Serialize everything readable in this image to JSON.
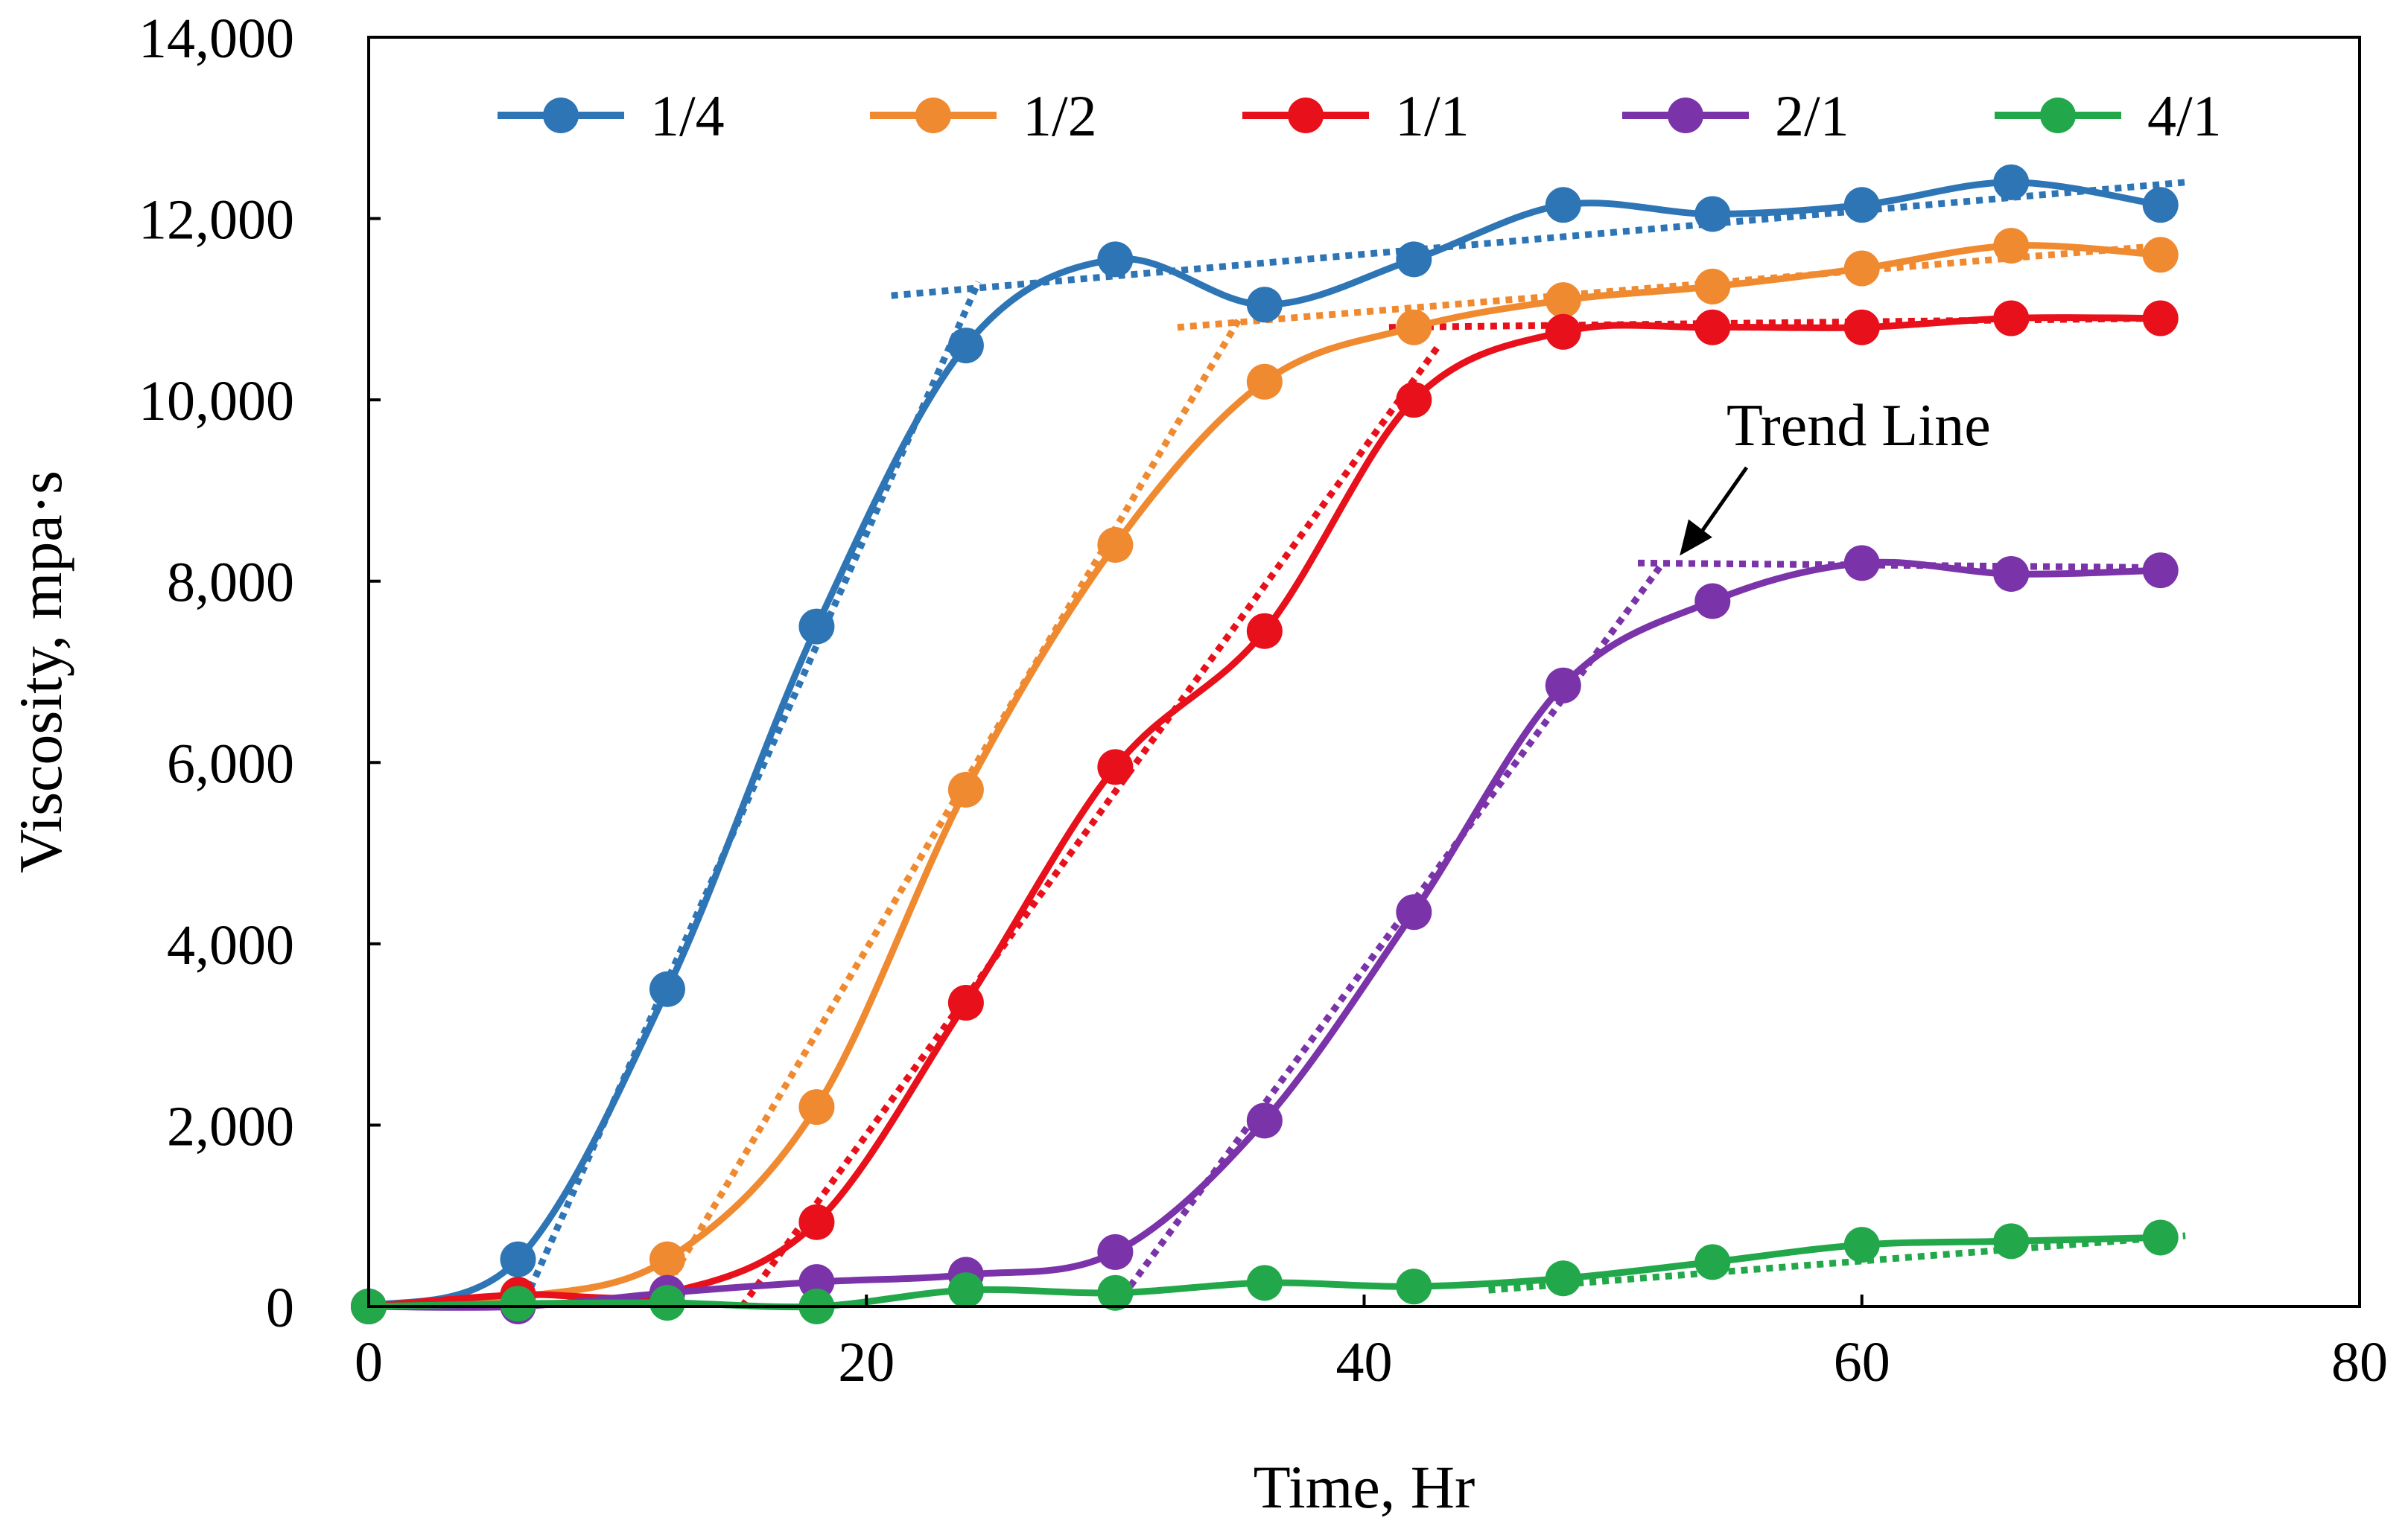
{
  "chart_data": {
    "type": "line",
    "title": "",
    "xlabel": "Time, Hr",
    "ylabel": "Viscosity, mpa·s",
    "xlim": [
      0,
      80
    ],
    "ylim": [
      0,
      14000
    ],
    "xticks": [
      0,
      20,
      40,
      60,
      80
    ],
    "yticks": [
      0,
      2000,
      4000,
      6000,
      8000,
      10000,
      12000,
      14000
    ],
    "xtick_labels": [
      "0",
      "20",
      "40",
      "60",
      "80"
    ],
    "ytick_labels": [
      "0",
      "2,000",
      "4,000",
      "6,000",
      "8,000",
      "10,000",
      "12,000",
      "14,000"
    ],
    "grid": false,
    "legend_position": "top",
    "series": [
      {
        "name": "1/4",
        "color": "#2E75B6",
        "x": [
          0,
          6,
          12,
          18,
          24,
          30,
          36,
          42,
          48,
          54,
          60,
          66,
          72
        ],
        "values": [
          0,
          520,
          3500,
          7500,
          10600,
          11550,
          11050,
          11550,
          12150,
          12050,
          12150,
          12400,
          12150
        ],
        "trend_lines": [
          [
            [
              6.5,
              200
            ],
            [
              24.5,
              11300
            ]
          ],
          [
            [
              21,
              11150
            ],
            [
              73,
              12400
            ]
          ]
        ]
      },
      {
        "name": "1/2",
        "color": "#F08A30",
        "x": [
          0,
          6,
          12,
          18,
          24,
          30,
          36,
          42,
          48,
          54,
          60,
          66,
          72
        ],
        "values": [
          0,
          100,
          520,
          2200,
          5700,
          8400,
          10200,
          10800,
          11100,
          11250,
          11450,
          11700,
          11600
        ],
        "trend_lines": [
          [
            [
              11.5,
              0
            ],
            [
              35,
              10900
            ]
          ],
          [
            [
              32.5,
              10800
            ],
            [
              72,
              11700
            ]
          ]
        ]
      },
      {
        "name": "1/1",
        "color": "#E8101A",
        "x": [
          0,
          6,
          12,
          18,
          24,
          30,
          36,
          42,
          48,
          54,
          60,
          66,
          72
        ],
        "values": [
          0,
          130,
          150,
          930,
          3350,
          5950,
          7450,
          10000,
          10750,
          10800,
          10800,
          10900,
          10900
        ],
        "trend_lines": [
          [
            [
              15,
              0
            ],
            [
              43,
              10600
            ]
          ],
          [
            [
              41,
              10800
            ],
            [
              72,
              10900
            ]
          ]
        ]
      },
      {
        "name": "2/1",
        "color": "#7A33A8",
        "x": [
          0,
          6,
          12,
          18,
          24,
          30,
          36,
          42,
          48,
          54,
          60,
          66,
          72
        ],
        "values": [
          0,
          0,
          150,
          270,
          350,
          600,
          2050,
          4350,
          6850,
          7780,
          8200,
          8080,
          8120
        ],
        "trend_lines": [
          [
            [
              30,
              0
            ],
            [
              52,
              8200
            ]
          ],
          [
            [
              51,
              8200
            ],
            [
              72,
              8150
            ]
          ]
        ]
      },
      {
        "name": "4/1",
        "color": "#22A84A",
        "x": [
          0,
          6,
          12,
          18,
          24,
          30,
          36,
          42,
          48,
          54,
          60,
          66,
          72
        ],
        "values": [
          0,
          30,
          40,
          0,
          180,
          150,
          260,
          220,
          310,
          490,
          680,
          720,
          760
        ],
        "trend_lines": [
          [
            [
              45,
              180
            ],
            [
              73,
              780
            ]
          ]
        ]
      }
    ],
    "annotations": [
      {
        "text": "Trend Line",
        "arrow_to": [
          52.5,
          8200
        ]
      }
    ]
  }
}
